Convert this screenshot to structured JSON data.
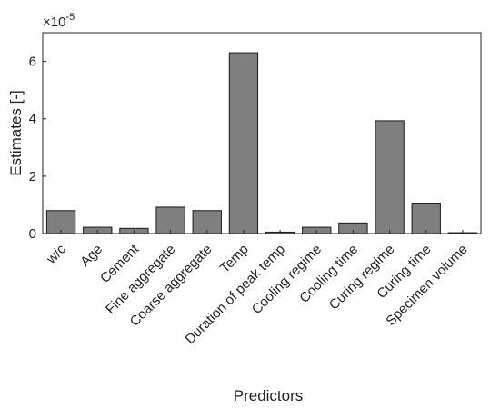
{
  "chart_data": {
    "type": "bar",
    "xlabel": "Predictors",
    "ylabel": "Estimates [-]",
    "multiplier_base": "×10",
    "multiplier_exponent": "-5",
    "ylim": [
      0,
      7
    ],
    "yticks": [
      0,
      2,
      4,
      6
    ],
    "grid": false,
    "bar_color": "#7f7f7f",
    "categories": [
      "w/c",
      "Age",
      "Cement",
      "Fine aggregate",
      "Coarse aggregate",
      "Temp",
      "Duration of peak temp",
      "Cooling regime",
      "Cooling time",
      "Curing regime",
      "Curing time",
      "Specimen volume"
    ],
    "values": [
      0.8,
      0.22,
      0.18,
      0.92,
      0.8,
      6.3,
      0.05,
      0.22,
      0.37,
      3.93,
      1.06,
      0.03
    ]
  }
}
